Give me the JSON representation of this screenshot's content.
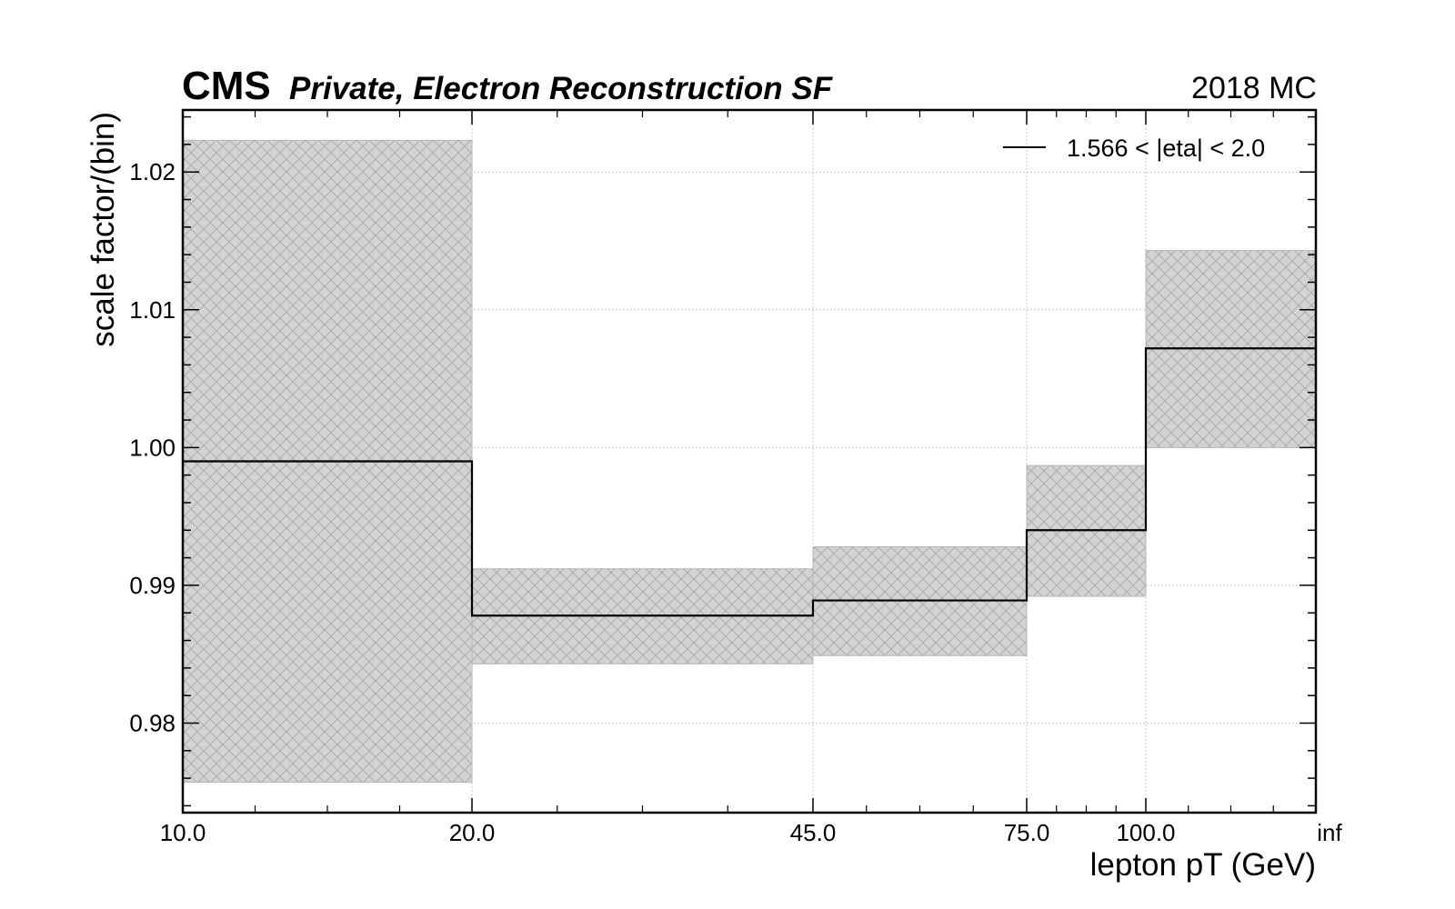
{
  "header": {
    "experiment": "CMS",
    "subtitle": "Private, Electron Reconstruction SF",
    "lumi": "2018 MC"
  },
  "chart_data": {
    "type": "step",
    "xlabel": "lepton pT (GeV)",
    "ylabel": "scale factor/(bin)",
    "x_tick_labels": [
      "10.0",
      "20.0",
      "45.0",
      "75.0",
      "100.0",
      "inf"
    ],
    "ylim": [
      0.9735,
      1.0245
    ],
    "y_ticks": [
      0.98,
      0.99,
      1.0,
      1.01,
      1.02
    ],
    "y_tick_labels": [
      "0.98",
      "0.99",
      "1.00",
      "1.01",
      "1.02"
    ],
    "grid": true,
    "legend_position": "top-right",
    "series": [
      {
        "name": "1.566 < |eta| < 2.0",
        "bins": [
          {
            "low": "10.0",
            "high": "20.0",
            "value": 0.999,
            "err_low": 0.9757,
            "err_high": 1.0223
          },
          {
            "low": "20.0",
            "high": "45.0",
            "value": 0.9878,
            "err_low": 0.9843,
            "err_high": 0.9912
          },
          {
            "low": "45.0",
            "high": "75.0",
            "value": 0.9889,
            "err_low": 0.9849,
            "err_high": 0.9928
          },
          {
            "low": "75.0",
            "high": "100.0",
            "value": 0.994,
            "err_low": 0.9892,
            "err_high": 0.9987
          },
          {
            "low": "100.0",
            "high": "inf",
            "value": 1.0072,
            "err_low": 1.0,
            "err_high": 1.0143
          }
        ]
      }
    ],
    "colors": {
      "line": "#000000",
      "band_fill": "#d3d3d3",
      "band_hatch": "#a9a9a9",
      "grid": "#c8c8c8"
    }
  }
}
